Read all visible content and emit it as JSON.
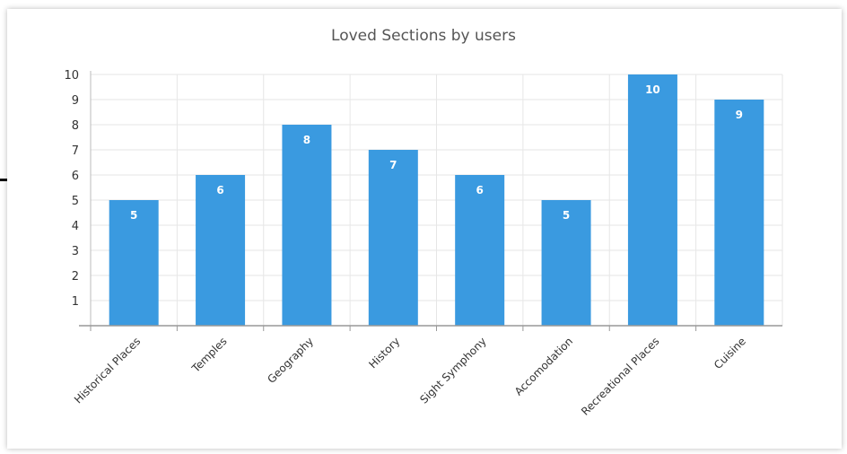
{
  "chart_data": {
    "type": "bar",
    "title": "Loved Sections by users",
    "categories": [
      "Historical Places",
      "Temples",
      "Geography",
      "History",
      "Sight Symphony",
      "Accomodation",
      "Recreational Places",
      "Cuisine"
    ],
    "values": [
      5,
      6,
      8,
      7,
      6,
      5,
      10,
      9
    ],
    "ylim": [
      0,
      10
    ],
    "yticks": [
      1,
      2,
      3,
      4,
      5,
      6,
      7,
      8,
      9,
      10
    ],
    "xlabel": "",
    "ylabel": "",
    "grid": true,
    "bar_color": "#3a9ae0"
  }
}
